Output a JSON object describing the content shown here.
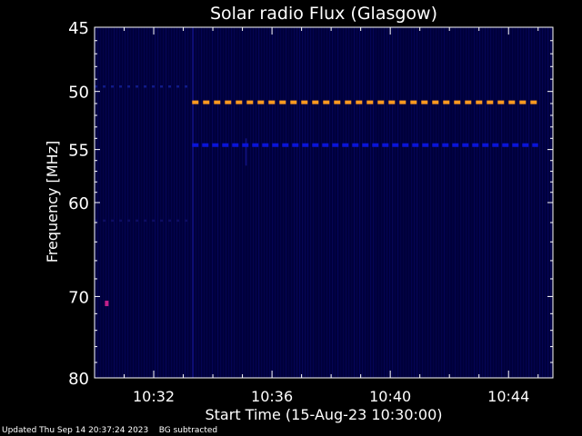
{
  "chart_data": {
    "type": "heatmap",
    "title": "Solar radio Flux (Glasgow)",
    "xlabel": "Start Time (15-Aug-23 10:30:00)",
    "ylabel": "Frequency [MHz]",
    "x_unit": "minutes after 10:30:00",
    "xlim": [
      0,
      15.5
    ],
    "ylim": [
      45,
      80
    ],
    "y_scale": "log (inverted: 45 at top, 80 at bottom)",
    "x_ticks": [
      {
        "min": 2,
        "label": "10:32"
      },
      {
        "min": 6,
        "label": "10:36"
      },
      {
        "min": 10,
        "label": "10:40"
      },
      {
        "min": 14,
        "label": "10:44"
      }
    ],
    "y_ticks": [
      45,
      50,
      55,
      60,
      70,
      80
    ],
    "background_color": "#00003a",
    "features": [
      {
        "name": "",
        "freq_mhz": 50.9,
        "from_min": 3.3,
        "to_min": 15.0,
        "color": "#ff9a20"
      },
      {
        "name": "",
        "freq_mhz": 54.6,
        "from_min": 3.3,
        "to_min": 15.0,
        "color": "#0a14d8"
      },
      {
        "name": "",
        "freq_mhz": 49.6,
        "from_min": 0.0,
        "to_min": 3.3,
        "color": "#101a88"
      },
      {
        "name": "",
        "freq_mhz": 61.8,
        "from_min": 0.0,
        "to_min": 3.3,
        "color": "#0c0c60"
      },
      {
        "name": "",
        "freq_mhz": 70.8,
        "from_min": 0.35,
        "to_min": 0.45,
        "color": "#c0208a"
      }
    ],
    "grid": false
  },
  "footer": {
    "updated": "Updated Thu Sep 14 20:37:24 2023",
    "note": "BG subtracted"
  }
}
